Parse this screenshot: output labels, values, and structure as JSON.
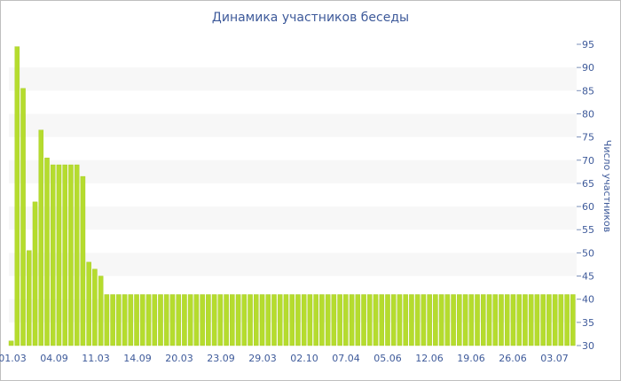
{
  "chart_data": {
    "type": "bar",
    "title": "Динамика участников беседы",
    "xlabel": "",
    "ylabel": "Число участников",
    "ylim": [
      30,
      95
    ],
    "y_ticks": [
      30,
      35,
      40,
      45,
      50,
      55,
      60,
      65,
      70,
      75,
      80,
      85,
      90,
      95
    ],
    "y_axis_side": "right",
    "grid": "horizontal alternating bands",
    "x_tick_labels": [
      "01.03",
      "04.09",
      "11.03",
      "14.09",
      "20.03",
      "23.09",
      "29.03",
      "02.10",
      "07.04",
      "05.06",
      "12.06",
      "19.06",
      "26.06",
      "03.07"
    ],
    "values": [
      31,
      94.5,
      85.5,
      50.5,
      61,
      76.5,
      70.5,
      69,
      69,
      69,
      69,
      69,
      66.5,
      48,
      46.5,
      45,
      41,
      41,
      41,
      41,
      41,
      41,
      41,
      41,
      41,
      41,
      41,
      41,
      41,
      41,
      41,
      41,
      41,
      41,
      41,
      41,
      41,
      41,
      41,
      41,
      41,
      41,
      41,
      41,
      41,
      41,
      41,
      41,
      41,
      41,
      41,
      41,
      41,
      41,
      41,
      41,
      41,
      41,
      41,
      41,
      41,
      41,
      41,
      41,
      41,
      41,
      41,
      41,
      41,
      41,
      41,
      41,
      41,
      41,
      41,
      41,
      41,
      41,
      41,
      41,
      41,
      41,
      41,
      41,
      41,
      41,
      41,
      41,
      41,
      41,
      41,
      41,
      41,
      41,
      41
    ],
    "colors": {
      "bar": "#b5dc2e",
      "bar_edge": "#a5ca22",
      "band": "#f7f7f7",
      "text": "#3e5a9a"
    }
  }
}
